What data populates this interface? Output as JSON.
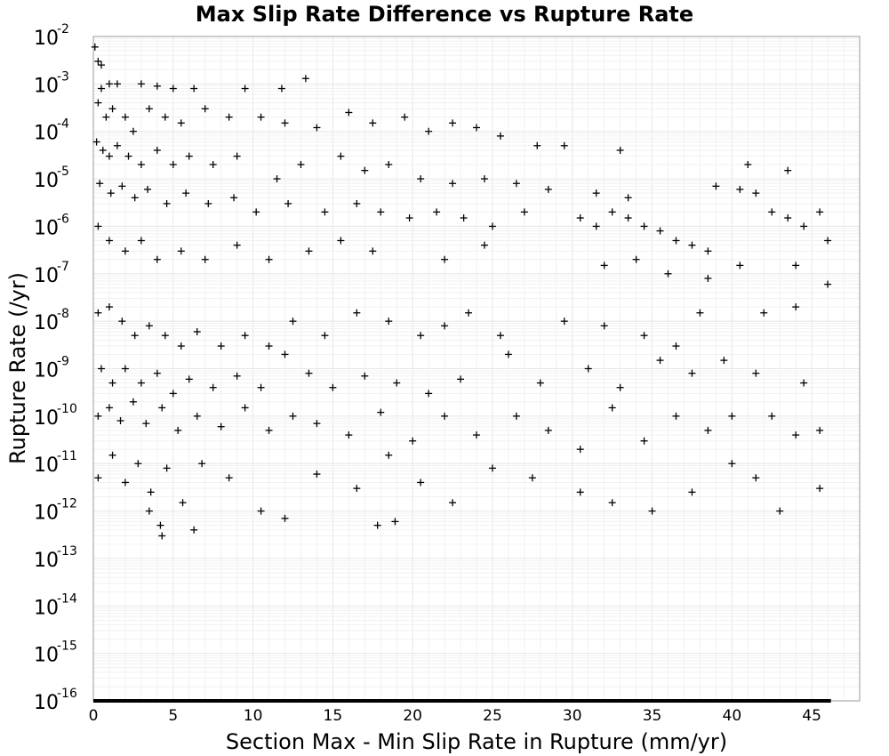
{
  "chart_data": {
    "type": "scatter",
    "title": "Max Slip Rate Difference vs Rupture Rate",
    "xlabel": "Section Max - Min Slip Rate in Rupture (mm/yr)",
    "ylabel": "Rupture Rate (/yr)",
    "xlim": [
      0,
      48
    ],
    "ylim": [
      1e-16,
      0.01
    ],
    "y_scale": "log",
    "x_ticks": [
      "0",
      "5",
      "10",
      "15",
      "20",
      "25",
      "30",
      "35",
      "40",
      "45"
    ],
    "y_ticks": [
      {
        "base": "10",
        "exp": "-2"
      },
      {
        "base": "10",
        "exp": "-3"
      },
      {
        "base": "10",
        "exp": "-4"
      },
      {
        "base": "10",
        "exp": "-5"
      },
      {
        "base": "10",
        "exp": "-6"
      },
      {
        "base": "10",
        "exp": "-7"
      },
      {
        "base": "10",
        "exp": "-8"
      },
      {
        "base": "10",
        "exp": "-9"
      },
      {
        "base": "10",
        "exp": "-10"
      },
      {
        "base": "10",
        "exp": "-11"
      },
      {
        "base": "10",
        "exp": "-12"
      },
      {
        "base": "10",
        "exp": "-13"
      },
      {
        "base": "10",
        "exp": "-14"
      },
      {
        "base": "10",
        "exp": "-15"
      },
      {
        "base": "10",
        "exp": "-16"
      }
    ],
    "grid": true,
    "marker": "plus",
    "marker_color": "#000000",
    "points": [
      [
        0.1,
        0.006
      ],
      [
        0.3,
        0.003
      ],
      [
        0.5,
        0.0025
      ],
      [
        1.0,
        0.001
      ],
      [
        0.5,
        0.0008
      ],
      [
        1.5,
        0.001
      ],
      [
        3.0,
        0.001
      ],
      [
        4.0,
        0.0009
      ],
      [
        5.0,
        0.0008
      ],
      [
        6.3,
        0.0008
      ],
      [
        9.5,
        0.0008
      ],
      [
        13.3,
        0.0013
      ],
      [
        11.8,
        0.0008
      ],
      [
        0.3,
        0.0004
      ],
      [
        0.8,
        0.0002
      ],
      [
        1.2,
        0.0003
      ],
      [
        2.0,
        0.0002
      ],
      [
        2.5,
        0.0001
      ],
      [
        3.5,
        0.0003
      ],
      [
        4.5,
        0.0002
      ],
      [
        5.5,
        0.00015
      ],
      [
        7.0,
        0.0003
      ],
      [
        8.5,
        0.0002
      ],
      [
        10.5,
        0.0002
      ],
      [
        12.0,
        0.00015
      ],
      [
        14.0,
        0.00012
      ],
      [
        16.0,
        0.00025
      ],
      [
        17.5,
        0.00015
      ],
      [
        19.5,
        0.0002
      ],
      [
        21.0,
        0.0001
      ],
      [
        22.5,
        0.00015
      ],
      [
        24.0,
        0.00012
      ],
      [
        25.5,
        8e-05
      ],
      [
        27.8,
        5e-05
      ],
      [
        29.5,
        5e-05
      ],
      [
        33.0,
        4e-05
      ],
      [
        0.2,
        6e-05
      ],
      [
        0.6,
        4e-05
      ],
      [
        1.0,
        3e-05
      ],
      [
        1.5,
        5e-05
      ],
      [
        2.2,
        3e-05
      ],
      [
        3.0,
        2e-05
      ],
      [
        4.0,
        4e-05
      ],
      [
        5.0,
        2e-05
      ],
      [
        6.0,
        3e-05
      ],
      [
        7.5,
        2e-05
      ],
      [
        9.0,
        3e-05
      ],
      [
        11.5,
        1e-05
      ],
      [
        13.0,
        2e-05
      ],
      [
        15.5,
        3e-05
      ],
      [
        17.0,
        1.5e-05
      ],
      [
        18.5,
        2e-05
      ],
      [
        20.5,
        1e-05
      ],
      [
        22.5,
        8e-06
      ],
      [
        24.5,
        1e-05
      ],
      [
        26.5,
        8e-06
      ],
      [
        28.5,
        6e-06
      ],
      [
        31.5,
        5e-06
      ],
      [
        33.5,
        4e-06
      ],
      [
        0.4,
        8e-06
      ],
      [
        1.1,
        5e-06
      ],
      [
        1.8,
        7e-06
      ],
      [
        2.6,
        4e-06
      ],
      [
        3.4,
        6e-06
      ],
      [
        4.6,
        3e-06
      ],
      [
        5.8,
        5e-06
      ],
      [
        7.2,
        3e-06
      ],
      [
        8.8,
        4e-06
      ],
      [
        10.2,
        2e-06
      ],
      [
        12.2,
        3e-06
      ],
      [
        14.5,
        2e-06
      ],
      [
        16.5,
        3e-06
      ],
      [
        18.0,
        2e-06
      ],
      [
        19.8,
        1.5e-06
      ],
      [
        21.5,
        2e-06
      ],
      [
        23.2,
        1.5e-06
      ],
      [
        25.0,
        1e-06
      ],
      [
        27.0,
        2e-06
      ],
      [
        30.5,
        1.5e-06
      ],
      [
        31.5,
        1e-06
      ],
      [
        32.5,
        2e-06
      ],
      [
        33.5,
        1.5e-06
      ],
      [
        34.5,
        1e-06
      ],
      [
        35.5,
        8e-07
      ],
      [
        36.5,
        5e-07
      ],
      [
        37.5,
        4e-07
      ],
      [
        38.5,
        3e-07
      ],
      [
        39.0,
        7e-06
      ],
      [
        40.5,
        6e-06
      ],
      [
        41.5,
        5e-06
      ],
      [
        42.5,
        2e-06
      ],
      [
        43.5,
        1.5e-06
      ],
      [
        44.5,
        1e-06
      ],
      [
        45.5,
        2e-06
      ],
      [
        46.0,
        5e-07
      ],
      [
        41.0,
        2e-05
      ],
      [
        43.5,
        1.5e-05
      ],
      [
        0.3,
        1e-06
      ],
      [
        1.0,
        5e-07
      ],
      [
        2.0,
        3e-07
      ],
      [
        3.0,
        5e-07
      ],
      [
        4.0,
        2e-07
      ],
      [
        5.5,
        3e-07
      ],
      [
        7.0,
        2e-07
      ],
      [
        9.0,
        4e-07
      ],
      [
        11.0,
        2e-07
      ],
      [
        13.5,
        3e-07
      ],
      [
        15.5,
        5e-07
      ],
      [
        17.5,
        3e-07
      ],
      [
        22.0,
        2e-07
      ],
      [
        24.5,
        4e-07
      ],
      [
        32.0,
        1.5e-07
      ],
      [
        34.0,
        2e-07
      ],
      [
        36.0,
        1e-07
      ],
      [
        38.5,
        8e-08
      ],
      [
        40.5,
        1.5e-07
      ],
      [
        44.0,
        1.5e-07
      ],
      [
        46.0,
        6e-08
      ],
      [
        0.3,
        1.5e-08
      ],
      [
        1.0,
        2e-08
      ],
      [
        1.8,
        1e-08
      ],
      [
        2.6,
        5e-09
      ],
      [
        3.5,
        8e-09
      ],
      [
        4.5,
        5e-09
      ],
      [
        5.5,
        3e-09
      ],
      [
        6.5,
        6e-09
      ],
      [
        8.0,
        3e-09
      ],
      [
        9.5,
        5e-09
      ],
      [
        11.0,
        3e-09
      ],
      [
        12.5,
        1e-08
      ],
      [
        14.5,
        5e-09
      ],
      [
        16.5,
        1.5e-08
      ],
      [
        18.5,
        1e-08
      ],
      [
        20.5,
        5e-09
      ],
      [
        22.0,
        8e-09
      ],
      [
        23.5,
        1.5e-08
      ],
      [
        25.5,
        5e-09
      ],
      [
        29.5,
        1e-08
      ],
      [
        32.0,
        8e-09
      ],
      [
        34.5,
        5e-09
      ],
      [
        36.5,
        3e-09
      ],
      [
        38.0,
        1.5e-08
      ],
      [
        42.0,
        1.5e-08
      ],
      [
        44.0,
        2e-08
      ],
      [
        0.5,
        1e-09
      ],
      [
        1.2,
        5e-10
      ],
      [
        2.0,
        1e-09
      ],
      [
        3.0,
        5e-10
      ],
      [
        4.0,
        8e-10
      ],
      [
        5.0,
        3e-10
      ],
      [
        6.0,
        6e-10
      ],
      [
        7.5,
        4e-10
      ],
      [
        9.0,
        7e-10
      ],
      [
        10.5,
        4e-10
      ],
      [
        12.0,
        2e-09
      ],
      [
        13.5,
        8e-10
      ],
      [
        15.0,
        4e-10
      ],
      [
        17.0,
        7e-10
      ],
      [
        19.0,
        5e-10
      ],
      [
        21.0,
        3e-10
      ],
      [
        23.0,
        6e-10
      ],
      [
        26.0,
        2e-09
      ],
      [
        28.0,
        5e-10
      ],
      [
        31.0,
        1e-09
      ],
      [
        33.0,
        4e-10
      ],
      [
        35.5,
        1.5e-09
      ],
      [
        37.5,
        8e-10
      ],
      [
        39.5,
        1.5e-09
      ],
      [
        41.5,
        8e-10
      ],
      [
        44.5,
        5e-10
      ],
      [
        0.3,
        1e-10
      ],
      [
        1.0,
        1.5e-10
      ],
      [
        1.7,
        8e-11
      ],
      [
        2.5,
        2e-10
      ],
      [
        3.3,
        7e-11
      ],
      [
        4.3,
        1.5e-10
      ],
      [
        5.3,
        5e-11
      ],
      [
        6.5,
        1e-10
      ],
      [
        8.0,
        6e-11
      ],
      [
        9.5,
        1.5e-10
      ],
      [
        11.0,
        5e-11
      ],
      [
        12.5,
        1e-10
      ],
      [
        14.0,
        7e-11
      ],
      [
        16.0,
        4e-11
      ],
      [
        18.0,
        1.2e-10
      ],
      [
        20.0,
        3e-11
      ],
      [
        22.0,
        1e-10
      ],
      [
        24.0,
        4e-11
      ],
      [
        26.5,
        1e-10
      ],
      [
        28.5,
        5e-11
      ],
      [
        30.5,
        2e-11
      ],
      [
        32.5,
        1.5e-10
      ],
      [
        34.5,
        3e-11
      ],
      [
        36.5,
        1e-10
      ],
      [
        38.5,
        5e-11
      ],
      [
        40.0,
        1e-10
      ],
      [
        42.5,
        1e-10
      ],
      [
        44.0,
        4e-11
      ],
      [
        45.5,
        5e-11
      ],
      [
        0.3,
        5e-12
      ],
      [
        1.2,
        1.5e-11
      ],
      [
        2.0,
        4e-12
      ],
      [
        2.8,
        1e-11
      ],
      [
        3.6,
        2.5e-12
      ],
      [
        4.6,
        8e-12
      ],
      [
        5.6,
        1.5e-12
      ],
      [
        6.8,
        1e-11
      ],
      [
        8.5,
        5e-12
      ],
      [
        10.5,
        1e-12
      ],
      [
        12.0,
        7e-13
      ],
      [
        14.0,
        6e-12
      ],
      [
        16.5,
        3e-12
      ],
      [
        18.5,
        1.5e-11
      ],
      [
        20.5,
        4e-12
      ],
      [
        22.5,
        1.5e-12
      ],
      [
        25.0,
        8e-12
      ],
      [
        27.5,
        5e-12
      ],
      [
        30.5,
        2.5e-12
      ],
      [
        32.5,
        1.5e-12
      ],
      [
        35.0,
        1e-12
      ],
      [
        37.5,
        2.5e-12
      ],
      [
        40.0,
        1e-11
      ],
      [
        41.5,
        5e-12
      ],
      [
        43.0,
        1e-12
      ],
      [
        45.5,
        3e-12
      ],
      [
        3.5,
        1e-12
      ],
      [
        4.2,
        5e-13
      ],
      [
        4.3,
        3e-13
      ],
      [
        6.3,
        4e-13
      ],
      [
        17.8,
        5e-13
      ],
      [
        18.9,
        6e-13
      ]
    ],
    "zero_rate_band": "points at 1e-16 spanning x 0 to 46"
  }
}
